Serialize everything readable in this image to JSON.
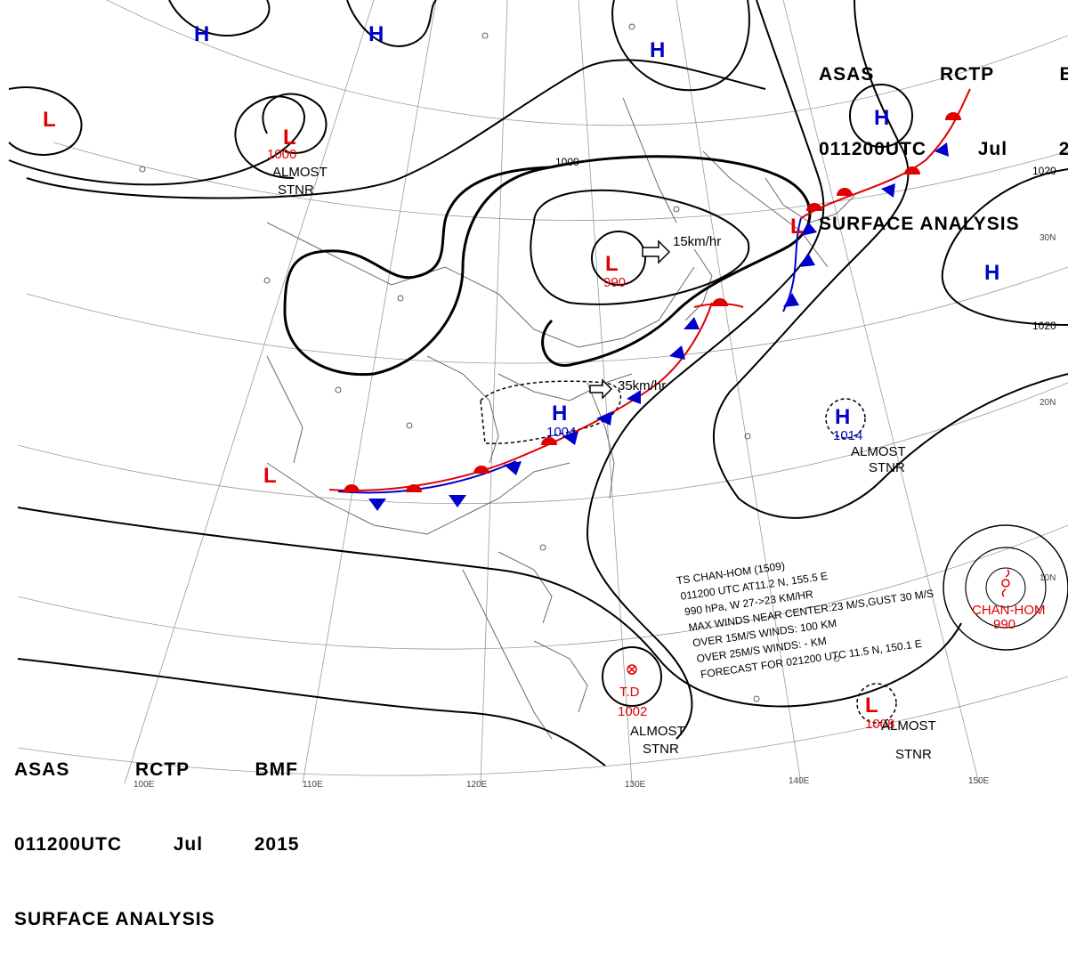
{
  "header": {
    "line1": "ASAS  RCTP  BMF",
    "line2": "011200UTC  Jul  2015",
    "line3": "SURFACE ANALYSIS"
  },
  "grid_labels": {
    "longitudes": [
      "100E",
      "110E",
      "120E",
      "130E",
      "140E",
      "150E"
    ],
    "latitudes": [
      "30N",
      "20N",
      "10N"
    ]
  },
  "isobar_labels": [
    "1000",
    "1020",
    "1020"
  ],
  "systems": {
    "low_north": {
      "symbol": "L",
      "pressure": "1000",
      "note1": "ALMOST",
      "note2": "STNR"
    },
    "low_northwest": {
      "symbol": "L"
    },
    "low_east_china": {
      "symbol": "L",
      "pressure": "990",
      "motion": "15km/hr"
    },
    "low_south_china": {
      "symbol": "L"
    },
    "low_japan": {
      "symbol": "L"
    },
    "high_mongolia_w": {
      "symbol": "H"
    },
    "high_mongolia_e": {
      "symbol": "H"
    },
    "high_manchuria": {
      "symbol": "H"
    },
    "high_okhotsk": {
      "symbol": "H"
    },
    "high_pacific": {
      "symbol": "H"
    },
    "high_taiwan": {
      "symbol": "H",
      "pressure": "1004",
      "motion": "35km/hr"
    },
    "high_subtrop": {
      "symbol": "H",
      "pressure": "1014",
      "note1": "ALMOST",
      "note2": "STNR"
    },
    "td": {
      "label": "T.D",
      "pressure": "1002",
      "note1": "ALMOST",
      "note2": "STNR"
    },
    "low_se": {
      "symbol": "L",
      "pressure": "1008",
      "note1": "ALMOST",
      "note2": "STNR"
    },
    "typhoon": {
      "name": "CHAN-HOM",
      "pressure": "990"
    }
  },
  "ts_info": [
    "TS  CHAN-HOM  (1509)",
    "011200 UTC  AT11.2 N, 155.5 E",
    "990 hPa, W  27->23 KM/HR",
    "MAX WINDS NEAR CENTER:23 M/S,GUST 30 M/S",
    "OVER 15M/S WINDS: 100 KM",
    "OVER 25M/S WINDS: - KM",
    "FORECAST FOR 021200 UTC 11.5 N, 150.1 E"
  ],
  "colors": {
    "low": "#e00000",
    "high": "#0000cc",
    "front_red": "#e00000",
    "front_blue": "#0000cc",
    "isobar": "#000000",
    "coast": "#666666",
    "grid": "#999999"
  },
  "icons": {
    "warm_front": "semicircle",
    "cold_front": "triangle",
    "tropical_storm": "typhoon-symbol",
    "tropical_depression": "circled-x"
  }
}
